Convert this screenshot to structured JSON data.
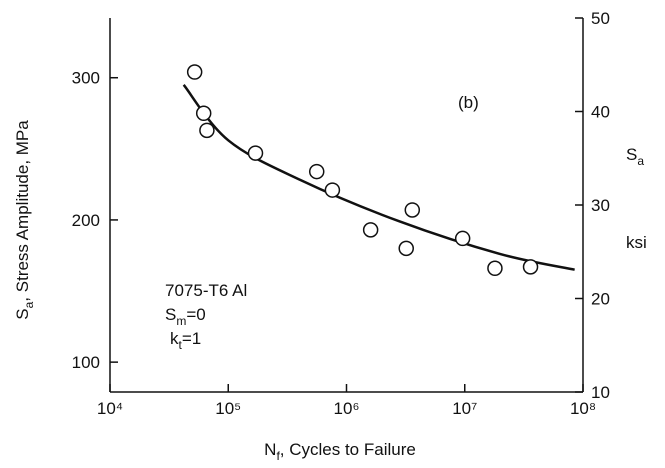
{
  "chart_data": {
    "type": "scatter",
    "xlabel": [
      "N",
      "f",
      ", Cycles to Failure"
    ],
    "ylabel": [
      "S",
      "a",
      ", Stress Amplitude, MPa"
    ],
    "y2label": [
      "S",
      "a",
      "ksi"
    ],
    "annotations": [
      "(b)",
      "7075-T6 Al"
    ],
    "sm": [
      "S",
      "m",
      "=0"
    ],
    "kt": [
      "k",
      "t",
      "=1"
    ],
    "xscale": "log",
    "xlim": [
      10000,
      100000000
    ],
    "xticks": [
      {
        "value": 10000,
        "label": "10⁴"
      },
      {
        "value": 100000,
        "label": "10⁵"
      },
      {
        "value": 1000000,
        "label": "10⁶"
      },
      {
        "value": 10000000,
        "label": "10⁷"
      },
      {
        "value": 100000000,
        "label": "10⁸"
      }
    ],
    "ylim": [
      79,
      342
    ],
    "yticks": [
      100,
      200,
      300
    ],
    "y2lim": [
      10,
      50
    ],
    "y2ticks": [
      10,
      20,
      30,
      40,
      50
    ],
    "color": "#111111",
    "x": [
      52000,
      62000,
      66000,
      170000,
      560000,
      760000,
      1600000,
      3600000,
      3200000,
      9600000,
      18000000,
      36000000
    ],
    "values": [
      304,
      275,
      263,
      247,
      234,
      221,
      193,
      207,
      180,
      187,
      166,
      167
    ],
    "fit": {
      "x": [
        42000,
        100000,
        410000,
        2800000,
        20000000,
        85000000
      ],
      "values": [
        295,
        256,
        228,
        199,
        176,
        165
      ]
    }
  }
}
